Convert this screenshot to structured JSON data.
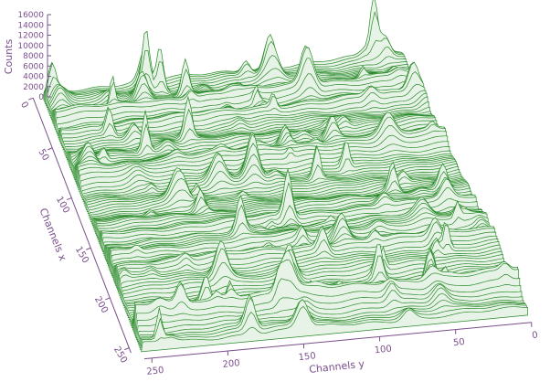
{
  "chart_data": {
    "type": "surface",
    "title": "",
    "xlabel": "Channels x",
    "ylabel": "Channels y",
    "zlabel": "Counts",
    "xlim": [
      0,
      255
    ],
    "ylim": [
      0,
      255
    ],
    "zlim": [
      0,
      16000
    ],
    "x_ticks": [
      "0",
      "50",
      "100",
      "150",
      "200",
      "250"
    ],
    "y_ticks": [
      "0",
      "50",
      "100",
      "150",
      "200",
      "250"
    ],
    "z_ticks": [
      "0",
      "2000",
      "4000",
      "6000",
      "8000",
      "10000",
      "12000",
      "14000",
      "16000"
    ],
    "baseline_counts": 2000,
    "notable_peaks": [
      {
        "x": 5,
        "y": 250,
        "counts": 9000
      },
      {
        "x": 10,
        "y": 185,
        "counts": 12000
      },
      {
        "x": 10,
        "y": 175,
        "counts": 12500
      },
      {
        "x": 20,
        "y": 160,
        "counts": 10000
      },
      {
        "x": 0,
        "y": 20,
        "counts": 16000
      },
      {
        "x": 150,
        "y": 128,
        "counts": 12000
      },
      {
        "x": 210,
        "y": 85,
        "counts": 10000
      },
      {
        "x": 60,
        "y": 170,
        "counts": 11000
      },
      {
        "x": 230,
        "y": 190,
        "counts": 8000
      }
    ],
    "colors": {
      "surface": "#2a8a2a",
      "axes": "#7a4f8c"
    }
  }
}
